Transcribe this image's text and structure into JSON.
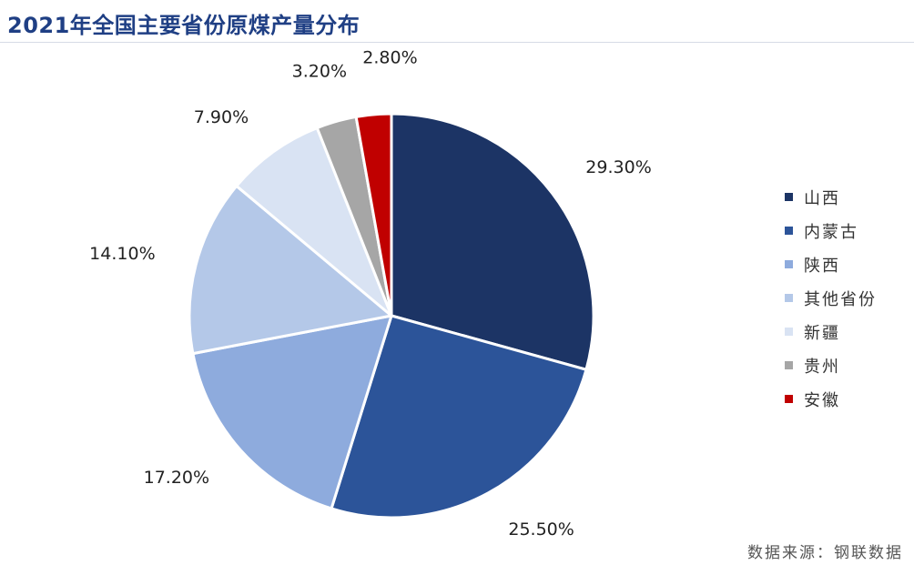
{
  "title": "2021年全国主要省份原煤产量分布",
  "source": "数据来源：钢联数据",
  "chart_data": {
    "type": "pie",
    "title": "2021年全国主要省份原煤产量分布",
    "start_angle_deg": 0,
    "direction": "clockwise",
    "legend_position": "right",
    "slices": [
      {
        "label": "山西",
        "value": 29.3,
        "display": "29.30%",
        "color": "#1c3465"
      },
      {
        "label": "内蒙古",
        "value": 25.5,
        "display": "25.50%",
        "color": "#2c5499"
      },
      {
        "label": "陕西",
        "value": 17.2,
        "display": "17.20%",
        "color": "#8eabdd"
      },
      {
        "label": "其他省份",
        "value": 14.1,
        "display": "14.10%",
        "color": "#b4c8e8"
      },
      {
        "label": "新疆",
        "value": 7.9,
        "display": "7.90%",
        "color": "#d9e3f3"
      },
      {
        "label": "贵州",
        "value": 3.2,
        "display": "3.20%",
        "color": "#a6a6a6"
      },
      {
        "label": "安徽",
        "value": 2.8,
        "display": "2.80%",
        "color": "#c00000"
      }
    ]
  }
}
